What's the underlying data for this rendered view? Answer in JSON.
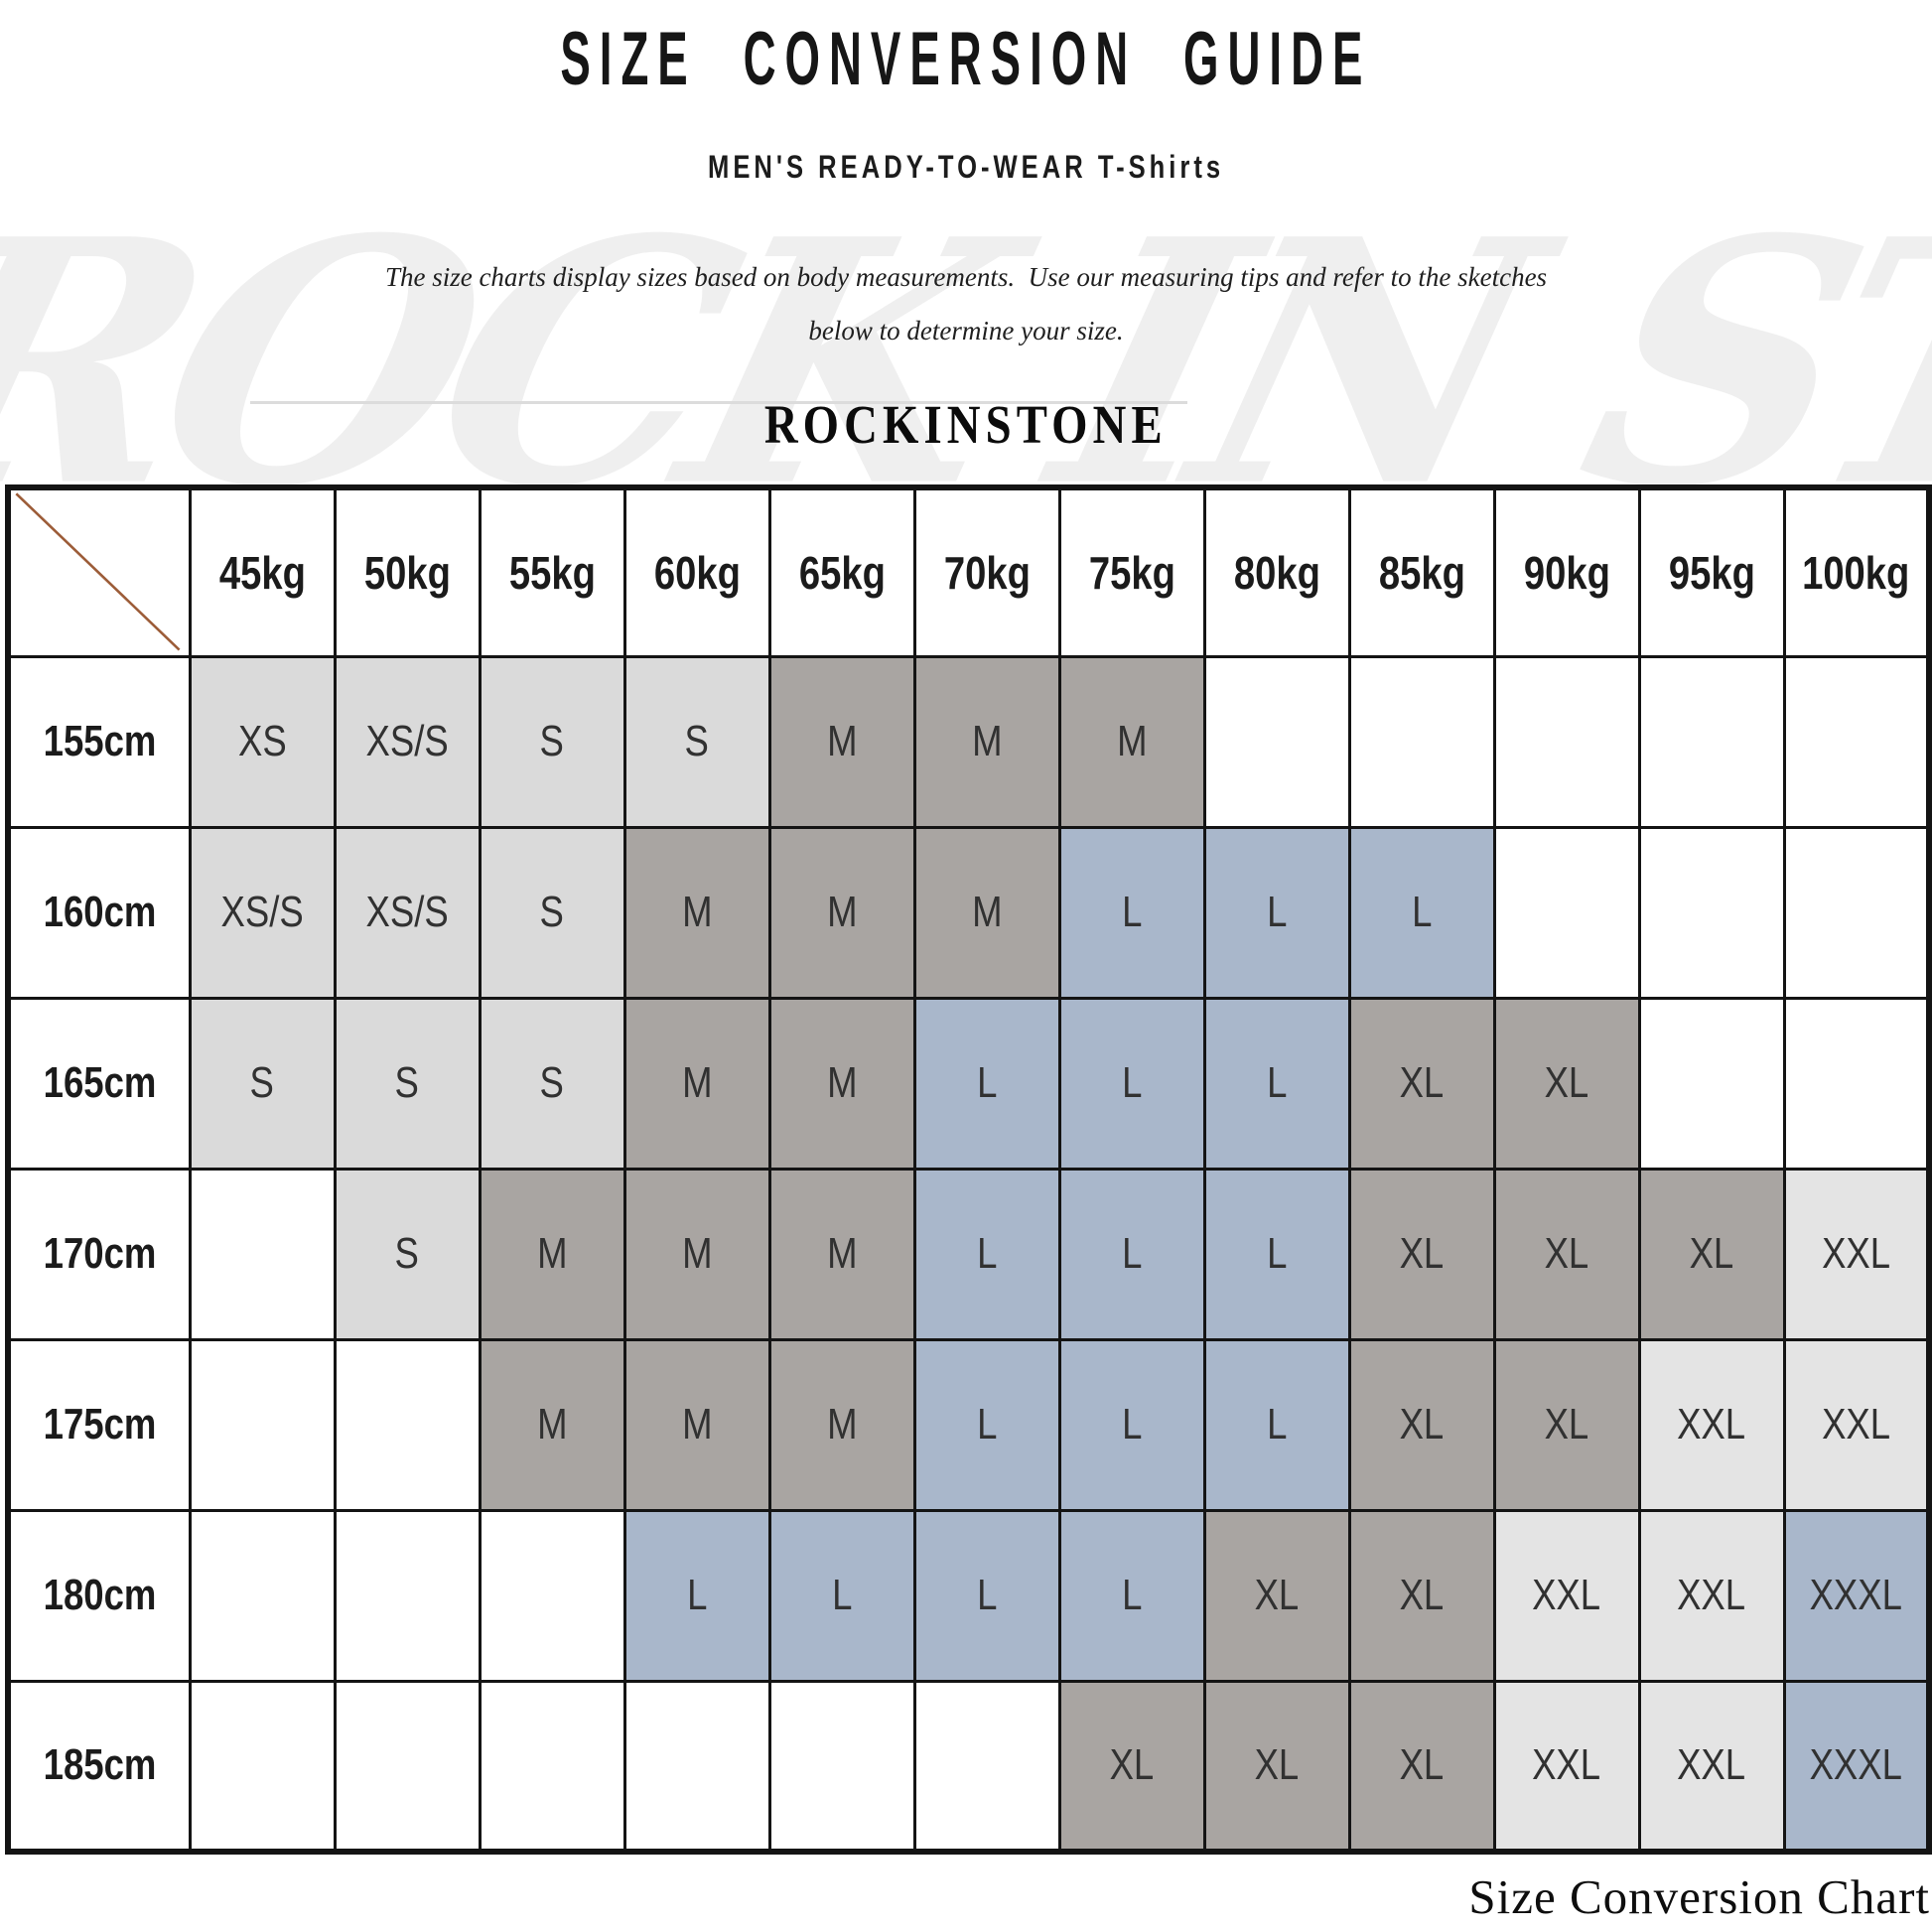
{
  "page": {
    "title": "SIZE CONVERSION GUIDE",
    "subtitle": "MEN'S READY-TO-WEAR T-Shirts",
    "description_line1": "The size charts display sizes based on body measurements.  Use our measuring tips and refer to the sketches",
    "description_line2": "below to determine your size.",
    "brand": "ROCKINSTONE",
    "watermark": "ROCK IN STONE",
    "footer_caption": "Size Conversion Chart"
  },
  "colors": {
    "cell_light_gray": "#dadada",
    "cell_dark_gray": "#a9a5a2",
    "cell_blue": "#a9b7cb",
    "cell_pale_gray": "#e4e4e4",
    "cell_white": "#ffffff",
    "grid_line": "#141414",
    "diagonal_line": "#9c5c38"
  },
  "table": {
    "weight_headers": [
      "45kg",
      "50kg",
      "55kg",
      "60kg",
      "65kg",
      "70kg",
      "75kg",
      "80kg",
      "85kg",
      "90kg",
      "95kg",
      "100kg"
    ],
    "rows": [
      {
        "height": "155cm",
        "cells": [
          {
            "size": "XS",
            "shade": "light"
          },
          {
            "size": "XS/S",
            "shade": "light"
          },
          {
            "size": "S",
            "shade": "light"
          },
          {
            "size": "S",
            "shade": "light"
          },
          {
            "size": "M",
            "shade": "dark"
          },
          {
            "size": "M",
            "shade": "dark"
          },
          {
            "size": "M",
            "shade": "dark"
          },
          {
            "size": "",
            "shade": "none"
          },
          {
            "size": "",
            "shade": "none"
          },
          {
            "size": "",
            "shade": "none"
          },
          {
            "size": "",
            "shade": "none"
          },
          {
            "size": "",
            "shade": "none"
          }
        ]
      },
      {
        "height": "160cm",
        "cells": [
          {
            "size": "XS/S",
            "shade": "light"
          },
          {
            "size": "XS/S",
            "shade": "light"
          },
          {
            "size": "S",
            "shade": "light"
          },
          {
            "size": "M",
            "shade": "dark"
          },
          {
            "size": "M",
            "shade": "dark"
          },
          {
            "size": "M",
            "shade": "dark"
          },
          {
            "size": "L",
            "shade": "blue"
          },
          {
            "size": "L",
            "shade": "blue"
          },
          {
            "size": "L",
            "shade": "blue"
          },
          {
            "size": "",
            "shade": "none"
          },
          {
            "size": "",
            "shade": "none"
          },
          {
            "size": "",
            "shade": "none"
          }
        ]
      },
      {
        "height": "165cm",
        "cells": [
          {
            "size": "S",
            "shade": "light"
          },
          {
            "size": "S",
            "shade": "light"
          },
          {
            "size": "S",
            "shade": "light"
          },
          {
            "size": "M",
            "shade": "dark"
          },
          {
            "size": "M",
            "shade": "dark"
          },
          {
            "size": "L",
            "shade": "blue"
          },
          {
            "size": "L",
            "shade": "blue"
          },
          {
            "size": "L",
            "shade": "blue"
          },
          {
            "size": "XL",
            "shade": "dark"
          },
          {
            "size": "XL",
            "shade": "dark"
          },
          {
            "size": "",
            "shade": "none"
          },
          {
            "size": "",
            "shade": "none"
          }
        ]
      },
      {
        "height": "170cm",
        "cells": [
          {
            "size": "",
            "shade": "none"
          },
          {
            "size": "S",
            "shade": "light"
          },
          {
            "size": "M",
            "shade": "dark"
          },
          {
            "size": "M",
            "shade": "dark"
          },
          {
            "size": "M",
            "shade": "dark"
          },
          {
            "size": "L",
            "shade": "blue"
          },
          {
            "size": "L",
            "shade": "blue"
          },
          {
            "size": "L",
            "shade": "blue"
          },
          {
            "size": "XL",
            "shade": "dark"
          },
          {
            "size": "XL",
            "shade": "dark"
          },
          {
            "size": "XL",
            "shade": "dark"
          },
          {
            "size": "XXL",
            "shade": "pale"
          }
        ]
      },
      {
        "height": "175cm",
        "cells": [
          {
            "size": "",
            "shade": "none"
          },
          {
            "size": "",
            "shade": "none"
          },
          {
            "size": "M",
            "shade": "dark"
          },
          {
            "size": "M",
            "shade": "dark"
          },
          {
            "size": "M",
            "shade": "dark"
          },
          {
            "size": "L",
            "shade": "blue"
          },
          {
            "size": "L",
            "shade": "blue"
          },
          {
            "size": "L",
            "shade": "blue"
          },
          {
            "size": "XL",
            "shade": "dark"
          },
          {
            "size": "XL",
            "shade": "dark"
          },
          {
            "size": "XXL",
            "shade": "pale"
          },
          {
            "size": "XXL",
            "shade": "pale"
          }
        ]
      },
      {
        "height": "180cm",
        "cells": [
          {
            "size": "",
            "shade": "none"
          },
          {
            "size": "",
            "shade": "none"
          },
          {
            "size": "",
            "shade": "none"
          },
          {
            "size": "L",
            "shade": "blue"
          },
          {
            "size": "L",
            "shade": "blue"
          },
          {
            "size": "L",
            "shade": "blue"
          },
          {
            "size": "L",
            "shade": "blue"
          },
          {
            "size": "XL",
            "shade": "dark"
          },
          {
            "size": "XL",
            "shade": "dark"
          },
          {
            "size": "XXL",
            "shade": "pale"
          },
          {
            "size": "XXL",
            "shade": "pale"
          },
          {
            "size": "XXXL",
            "shade": "blue"
          }
        ]
      },
      {
        "height": "185cm",
        "cells": [
          {
            "size": "",
            "shade": "none"
          },
          {
            "size": "",
            "shade": "none"
          },
          {
            "size": "",
            "shade": "none"
          },
          {
            "size": "",
            "shade": "none"
          },
          {
            "size": "",
            "shade": "none"
          },
          {
            "size": "",
            "shade": "none"
          },
          {
            "size": "XL",
            "shade": "dark"
          },
          {
            "size": "XL",
            "shade": "dark"
          },
          {
            "size": "XL",
            "shade": "dark"
          },
          {
            "size": "XXL",
            "shade": "pale"
          },
          {
            "size": "XXL",
            "shade": "pale"
          },
          {
            "size": "XXXL",
            "shade": "blue"
          }
        ]
      }
    ]
  },
  "chart_data": {
    "type": "table",
    "title": "SIZE CONVERSION GUIDE",
    "subtitle": "MEN'S READY-TO-WEAR T-Shirts",
    "columns_weight": [
      "45kg",
      "50kg",
      "55kg",
      "60kg",
      "65kg",
      "70kg",
      "75kg",
      "80kg",
      "85kg",
      "90kg",
      "95kg",
      "100kg"
    ],
    "row_labels_height": [
      "155cm",
      "160cm",
      "165cm",
      "170cm",
      "175cm",
      "180cm",
      "185cm"
    ],
    "matrix": [
      [
        "XS",
        "XS/S",
        "S",
        "S",
        "M",
        "M",
        "M",
        "",
        "",
        "",
        "",
        ""
      ],
      [
        "XS/S",
        "XS/S",
        "S",
        "M",
        "M",
        "M",
        "L",
        "L",
        "L",
        "",
        "",
        ""
      ],
      [
        "S",
        "S",
        "S",
        "M",
        "M",
        "L",
        "L",
        "L",
        "XL",
        "XL",
        "",
        ""
      ],
      [
        "",
        "S",
        "M",
        "M",
        "M",
        "L",
        "L",
        "L",
        "XL",
        "XL",
        "XL",
        "XXL"
      ],
      [
        "",
        "",
        "M",
        "M",
        "M",
        "L",
        "L",
        "L",
        "XL",
        "XL",
        "XXL",
        "XXL"
      ],
      [
        "",
        "",
        "",
        "L",
        "L",
        "L",
        "L",
        "XL",
        "XL",
        "XXL",
        "XXL",
        "XXXL"
      ],
      [
        "",
        "",
        "",
        "",
        "",
        "",
        "XL",
        "XL",
        "XL",
        "XXL",
        "XXL",
        "XXXL"
      ]
    ]
  }
}
